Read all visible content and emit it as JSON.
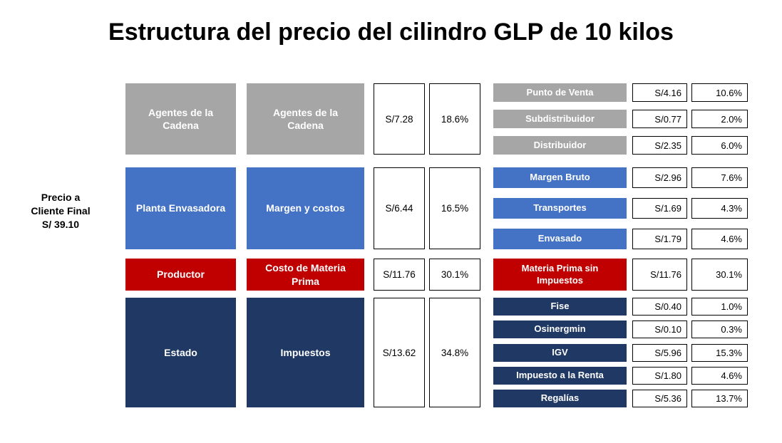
{
  "title": "Estructura del precio del cilindro GLP de 10 kilos",
  "price_final_label": "Precio a\nCliente Final\nS/ 39.10",
  "colors": {
    "gray": "#a6a6a6",
    "blue": "#4472c4",
    "red": "#c00000",
    "navy": "#1f3864"
  },
  "sections": [
    {
      "agent": "Agentes de la Cadena",
      "concept": "Agentes de la Cadena",
      "value": "S/7.28",
      "percent": "18.6%",
      "details": [
        {
          "label": "Punto de Venta",
          "value": "S/4.16",
          "percent": "10.6%"
        },
        {
          "label": "Subdistribuidor",
          "value": "S/0.77",
          "percent": "2.0%"
        },
        {
          "label": "Distribuidor",
          "value": "S/2.35",
          "percent": "6.0%"
        }
      ]
    },
    {
      "agent": "Planta Envasadora",
      "concept": "Margen y costos",
      "value": "S/6.44",
      "percent": "16.5%",
      "details": [
        {
          "label": "Margen Bruto",
          "value": "S/2.96",
          "percent": "7.6%"
        },
        {
          "label": "Transportes",
          "value": "S/1.69",
          "percent": "4.3%"
        },
        {
          "label": "Envasado",
          "value": "S/1.79",
          "percent": "4.6%"
        }
      ]
    },
    {
      "agent": "Productor",
      "concept": "Costo de Materia Prima",
      "value": "S/11.76",
      "percent": "30.1%",
      "details": [
        {
          "label": "Materia Prima sin Impuestos",
          "value": "S/11.76",
          "percent": "30.1%"
        }
      ]
    },
    {
      "agent": "Estado",
      "concept": "Impuestos",
      "value": "S/13.62",
      "percent": "34.8%",
      "details": [
        {
          "label": "Fise",
          "value": "S/0.40",
          "percent": "1.0%"
        },
        {
          "label": "Osinergmin",
          "value": "S/0.10",
          "percent": "0.3%"
        },
        {
          "label": "IGV",
          "value": "S/5.96",
          "percent": "15.3%"
        },
        {
          "label": "Impuesto a la Renta",
          "value": "S/1.80",
          "percent": "4.6%"
        },
        {
          "label": "Regalías",
          "value": "S/5.36",
          "percent": "13.7%"
        }
      ]
    }
  ]
}
